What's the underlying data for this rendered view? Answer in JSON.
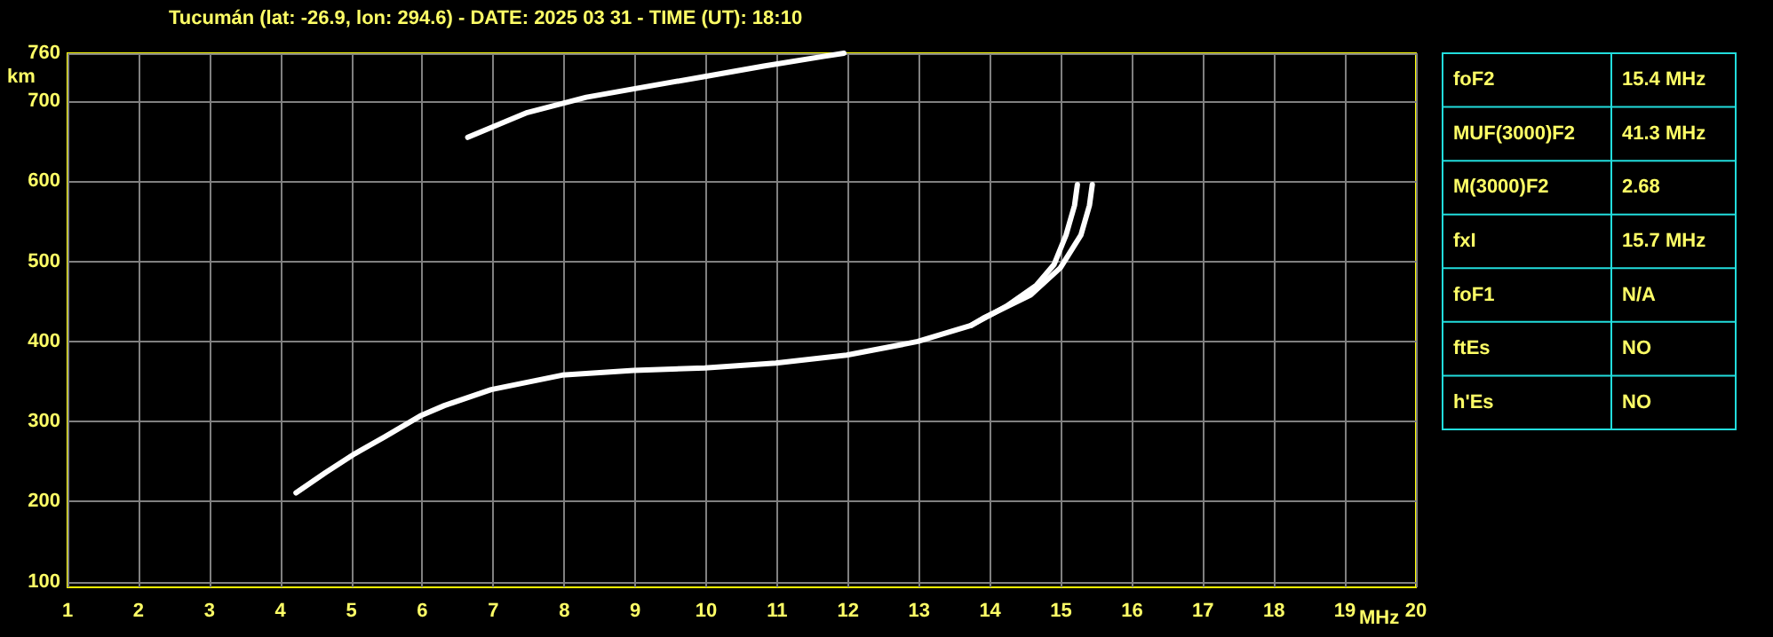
{
  "chart_data": {
    "type": "line",
    "title": "Tucumán (lat: -26.9, lon: 294.6) - DATE: 2025 03 31 - TIME (UT): 18:10",
    "xlabel": "MHz",
    "ylabel": "km",
    "xlim": [
      1,
      20
    ],
    "ylim": [
      93,
      760
    ],
    "xticks": [
      1,
      2,
      3,
      4,
      5,
      6,
      7,
      8,
      9,
      10,
      11,
      12,
      13,
      14,
      15,
      16,
      17,
      18,
      19,
      20
    ],
    "yticks": [
      100,
      200,
      300,
      400,
      500,
      600,
      700,
      760
    ],
    "grid": true,
    "marker": "none",
    "line_style": "solid",
    "series": [
      {
        "color": "#ffffff",
        "x": [
          4.22,
          4.63,
          5.05,
          5.47,
          5.97,
          6.31,
          6.97,
          7.97,
          8.98,
          9.98,
          10.98,
          11.98,
          12.98,
          13.73,
          14.23,
          14.65,
          14.9,
          15.07,
          15.19,
          15.23
        ],
        "values": [
          211,
          236,
          260,
          281,
          307,
          320,
          340,
          358,
          364,
          367,
          373,
          383,
          400,
          420,
          444,
          470,
          496,
          533,
          570,
          596
        ]
      },
      {
        "color": "#ffffff",
        "x": [
          13.73,
          13.9,
          14.57,
          14.99,
          15.28,
          15.4,
          15.44
        ],
        "values": [
          420,
          429,
          458,
          492,
          533,
          570,
          596
        ]
      },
      {
        "color": "#ffffff",
        "x": [
          6.64,
          7.48,
          8.31,
          9.14,
          9.98,
          10.81,
          11.65,
          11.94
        ],
        "values": [
          655,
          686,
          705,
          718,
          731,
          744,
          756,
          760
        ]
      }
    ],
    "annotations": [
      "foF2",
      "15.4 MHz",
      "MUF(3000)F2",
      "41.3 MHz",
      "M(3000)F2",
      "2.68",
      "fxI",
      "15.7 MHz",
      "foF1",
      "N/A",
      "ftEs",
      "NO",
      "h'Es",
      "NO"
    ]
  }
}
